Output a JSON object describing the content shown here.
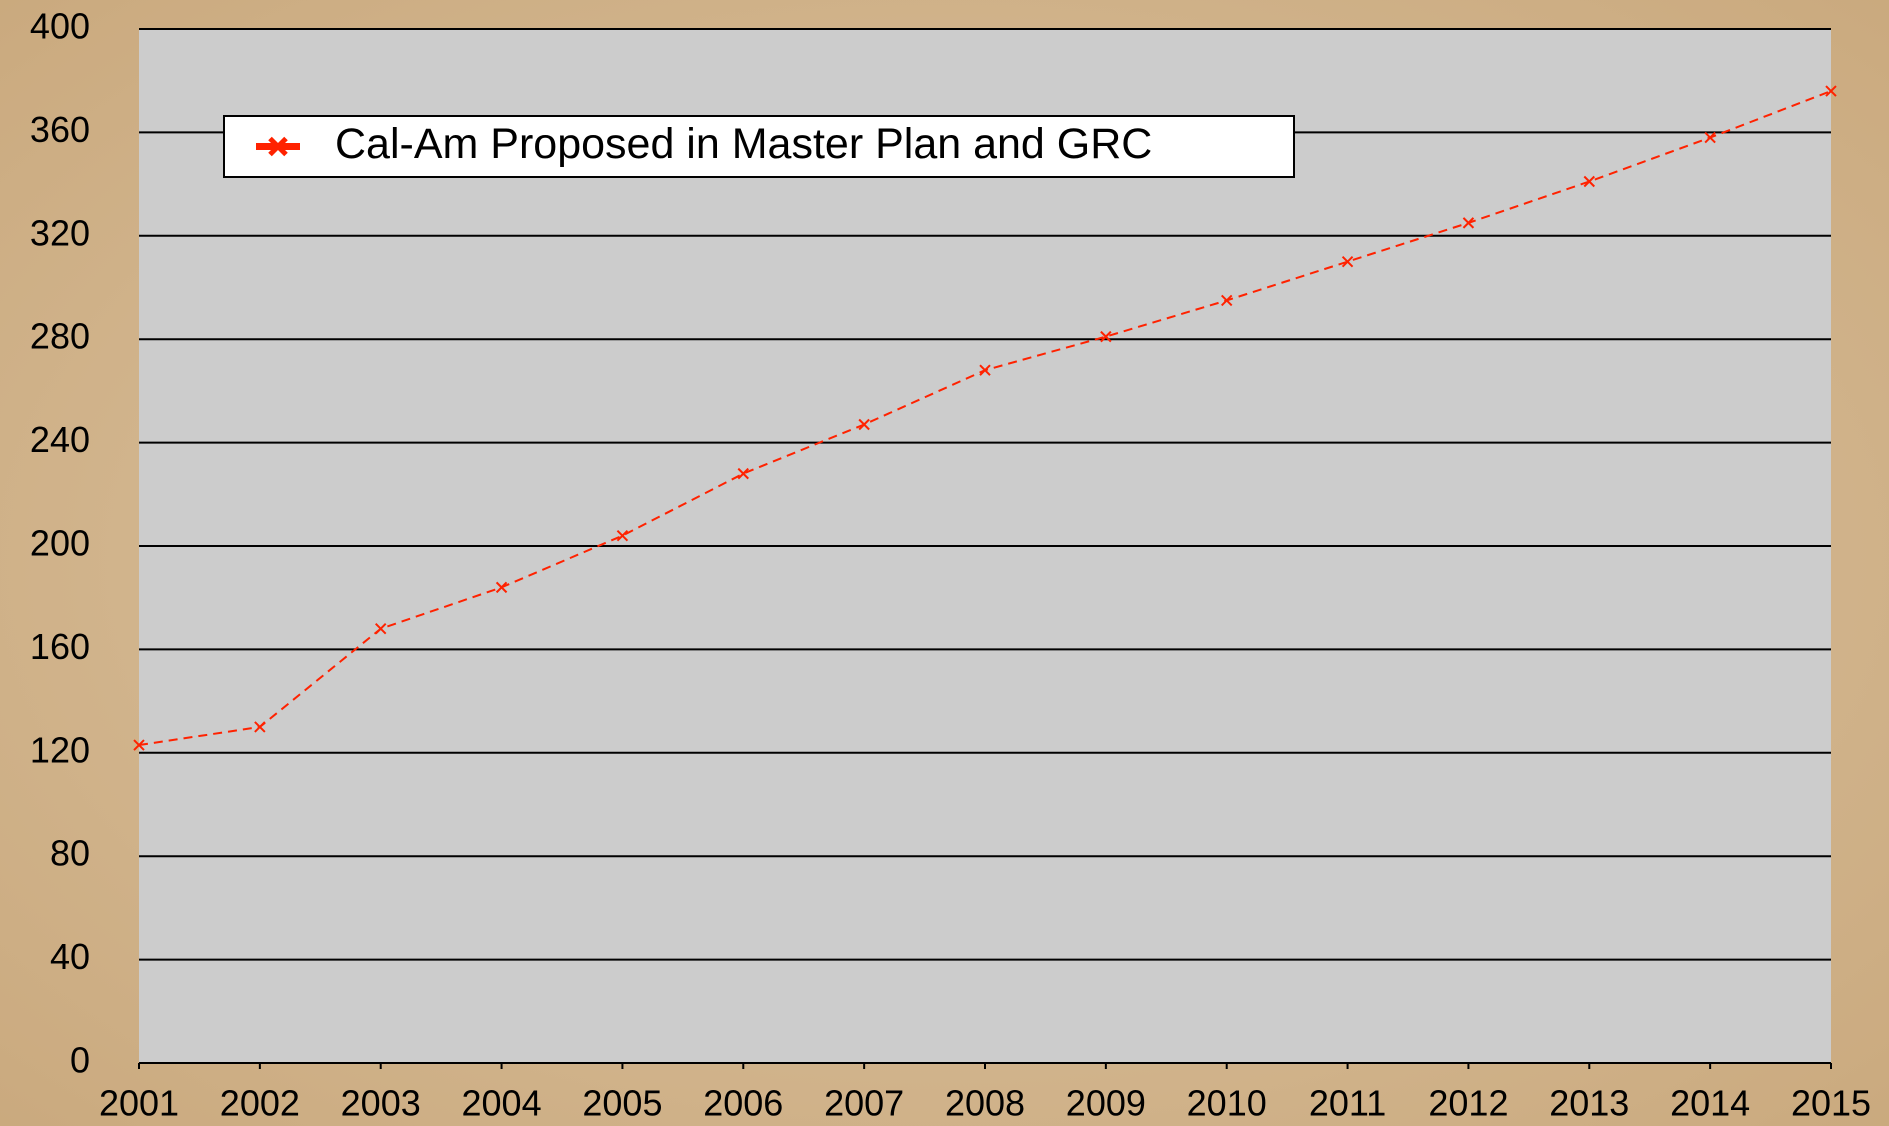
{
  "chart_data": {
    "type": "line",
    "x": [
      2001,
      2002,
      2003,
      2004,
      2005,
      2006,
      2007,
      2008,
      2009,
      2010,
      2011,
      2012,
      2013,
      2014,
      2015
    ],
    "xlim": [
      2001,
      2015
    ],
    "xticks": [
      2001,
      2002,
      2003,
      2004,
      2005,
      2006,
      2007,
      2008,
      2009,
      2010,
      2011,
      2012,
      2013,
      2014,
      2015
    ],
    "ylim": [
      0,
      400
    ],
    "yticks": [
      0,
      40,
      80,
      120,
      160,
      200,
      240,
      280,
      320,
      360,
      400
    ],
    "grid": true,
    "legend": "top-left",
    "series": [
      {
        "name": "Cal-Am Proposed in Master Plan and GRC",
        "color": "#ff2200",
        "values": [
          123,
          130,
          168,
          184,
          204,
          228,
          247,
          268,
          281,
          295,
          310,
          325,
          341,
          358,
          376
        ]
      }
    ]
  }
}
